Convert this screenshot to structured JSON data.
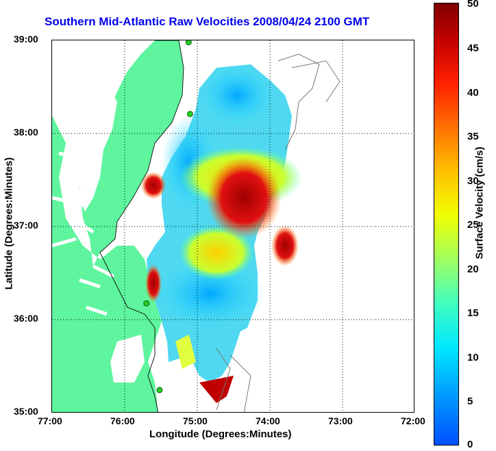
{
  "title": "Southern Mid-Atlantic Raw Velocities 2008/04/24 2100 GMT",
  "x_axis": {
    "label": "Longitude (Degrees:Minutes)",
    "ticks": [
      "77:00",
      "76:00",
      "75:00",
      "74:00",
      "73:00",
      "72:00"
    ]
  },
  "y_axis": {
    "label": "Latitude (Degrees:Minutes)",
    "ticks": [
      "39:00",
      "38:00",
      "37:00",
      "36:00",
      "35:00"
    ]
  },
  "colorbar": {
    "label": "Surface Velocity (cm/s)",
    "ticks": [
      "50",
      "45",
      "40",
      "35",
      "30",
      "25",
      "20",
      "15",
      "10",
      "5",
      "0"
    ]
  },
  "colors": {
    "title": "#0000ee",
    "land": "#5ef59e",
    "grid": "#000000",
    "station": "#22cc22"
  },
  "chart_data": {
    "type": "heatmap",
    "xlim": [
      -77,
      -72
    ],
    "ylim": [
      35,
      39
    ],
    "colorbar_range": [
      0,
      50
    ],
    "grid": true,
    "stations": [
      {
        "lon": -75.12,
        "lat": 38.98
      },
      {
        "lon": -75.1,
        "lat": 38.21
      },
      {
        "lon": -75.7,
        "lat": 36.18
      },
      {
        "lon": -75.52,
        "lat": 35.25
      }
    ]
  }
}
